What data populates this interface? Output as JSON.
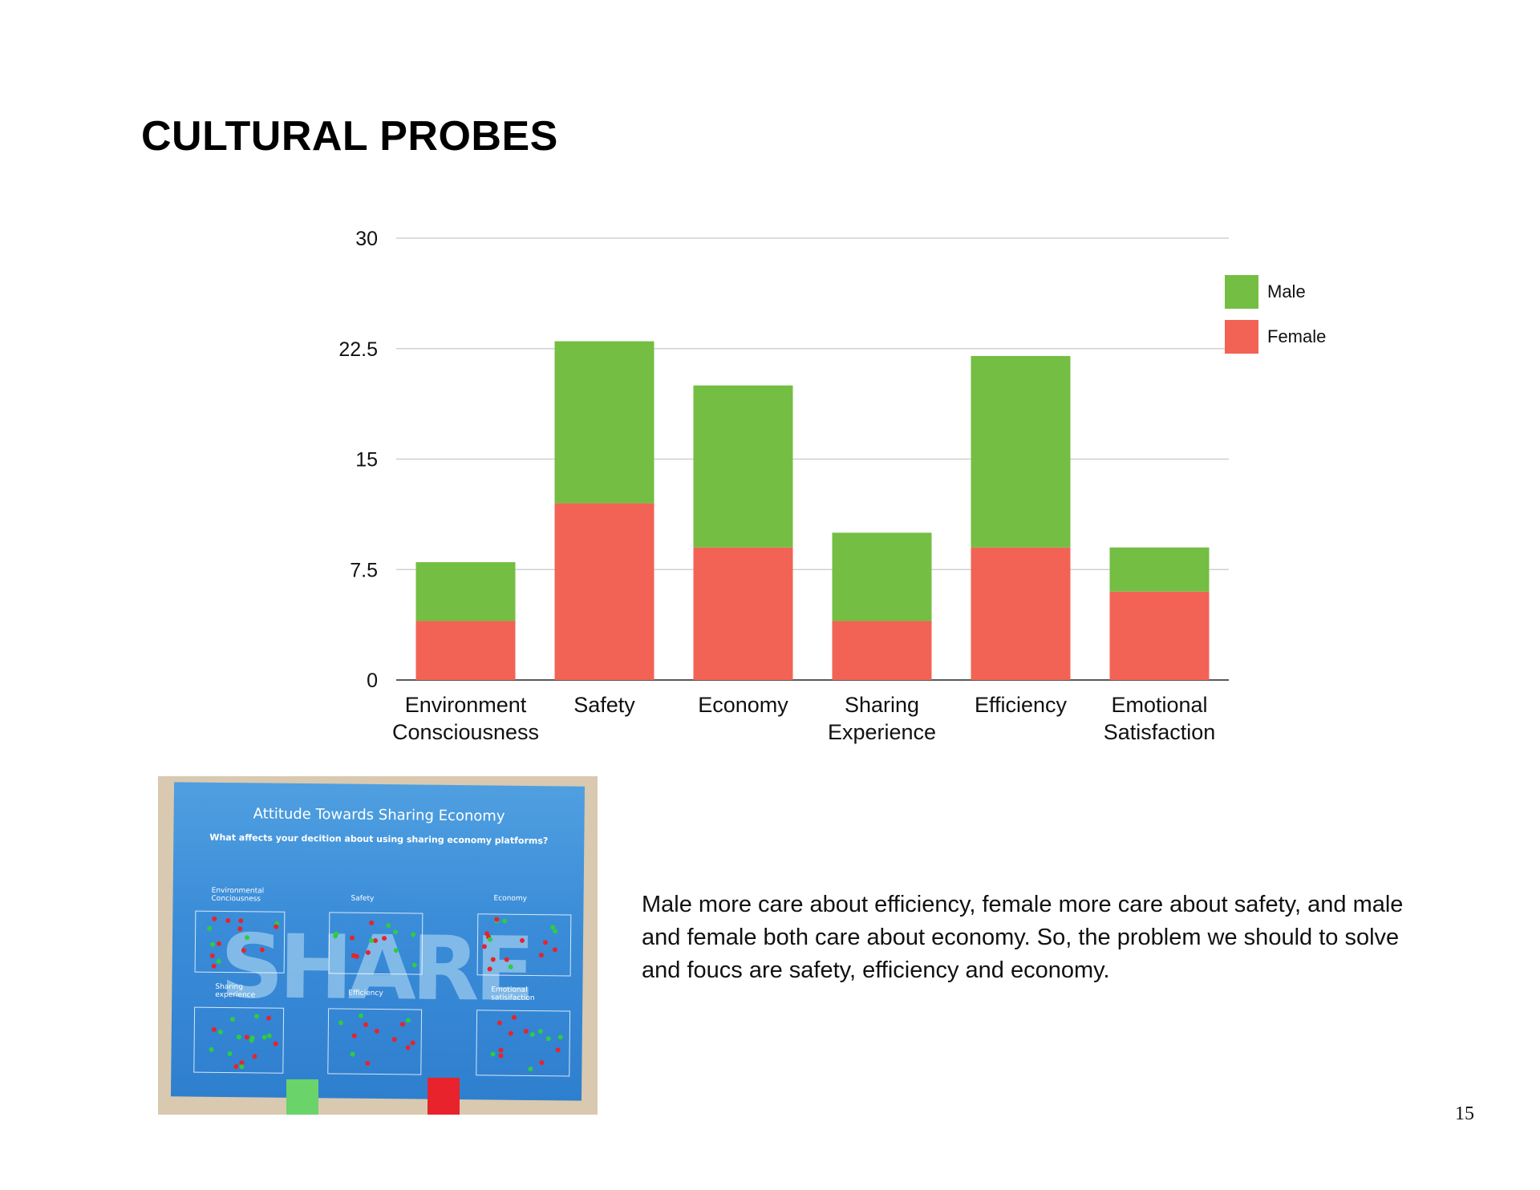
{
  "slide": {
    "title": "CULTURAL PROBES",
    "caption": "Male more care about efficiency, female more care about safety, and male and female both care about economy.  So, the problem we should to solve and foucs are safety, efficiency and economy.",
    "page_number": "15"
  },
  "chart_data": {
    "type": "bar",
    "stacked": true,
    "categories": [
      [
        "Environment",
        "Consciousness"
      ],
      [
        "Safety"
      ],
      [
        "Economy"
      ],
      [
        "Sharing",
        "Experience"
      ],
      [
        "Efficiency"
      ],
      [
        "Emotional",
        "Satisfaction"
      ]
    ],
    "series": [
      {
        "name": "Female",
        "color": "#f26355",
        "values": [
          4,
          12,
          9,
          4,
          9,
          6
        ]
      },
      {
        "name": "Male",
        "color": "#74be43",
        "values": [
          4,
          11,
          11,
          6,
          13,
          3
        ]
      }
    ],
    "legend_order": [
      "Male",
      "Female"
    ],
    "legend_position": "right",
    "yticks": [
      "0",
      "7.5",
      "15",
      "22.5",
      "30"
    ],
    "ylim": [
      0,
      30
    ],
    "grid": true
  },
  "photo": {
    "poster_title": "Attitude Towards Sharing Economy",
    "poster_subtitle": "What affects your decition about using sharing economy platforms?",
    "watermark": "SHARE",
    "section_labels": [
      "Environmental Conciousness",
      "Safety",
      "Economy",
      "Sharing experience",
      "Efficiency",
      "Emotional satisifaction"
    ]
  }
}
